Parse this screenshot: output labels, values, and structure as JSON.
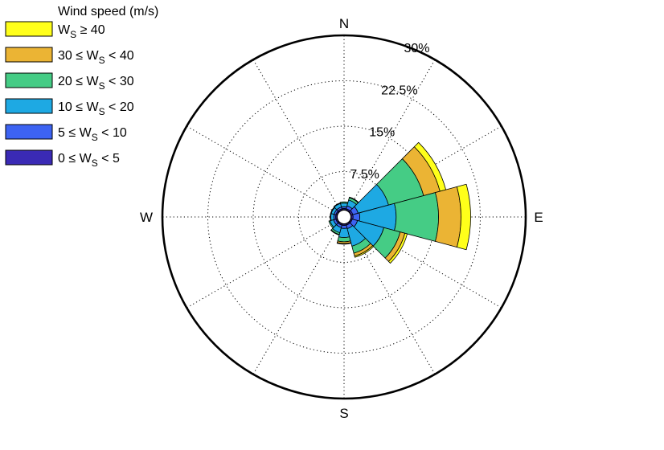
{
  "chart_data": {
    "type": "polar-bar",
    "title": "",
    "legend": {
      "title": "Wind speed (m/s)",
      "placement": "top-left",
      "entries": [
        {
          "key": "ws40",
          "parts": {
            "pre": "",
            "mid": "W",
            "sub": "S",
            "post": " ≥ 40"
          },
          "color": "#ffff1a"
        },
        {
          "key": "ws30",
          "parts": {
            "pre": "30 ≤ ",
            "mid": "W",
            "sub": "S",
            "post": " < 40"
          },
          "color": "#ebb434"
        },
        {
          "key": "ws20",
          "parts": {
            "pre": "20 ≤ ",
            "mid": "W",
            "sub": "S",
            "post": " < 30"
          },
          "color": "#45cc85"
        },
        {
          "key": "ws10",
          "parts": {
            "pre": "10 ≤ ",
            "mid": "W",
            "sub": "S",
            "post": " < 20"
          },
          "color": "#1ea9e3"
        },
        {
          "key": "ws5",
          "parts": {
            "pre": "5 ≤ ",
            "mid": "W",
            "sub": "S",
            "post": " < 10"
          },
          "color": "#3d63f2"
        },
        {
          "key": "ws0",
          "parts": {
            "pre": "0 ≤ ",
            "mid": "W",
            "sub": "S",
            "post": " < 5"
          },
          "color": "#3a2ab5"
        }
      ]
    },
    "directions": {
      "N": "N",
      "E": "E",
      "S": "S",
      "W": "W"
    },
    "radial_ticks": [
      {
        "value": 7.5,
        "label": "7.5%"
      },
      {
        "value": 15,
        "label": "15%"
      },
      {
        "value": 22.5,
        "label": "22.5%"
      },
      {
        "value": 30,
        "label": "30%"
      }
    ],
    "radial_max": 30,
    "center_hole": 1.2,
    "grid": true,
    "sector_width_deg": 30,
    "stack_order_inner_to_outer": [
      "ws0",
      "ws5",
      "ws10",
      "ws20",
      "ws30",
      "ws40"
    ],
    "sectors": [
      {
        "direction_deg": 0,
        "values": [
          0.2,
          0.3,
          0.6,
          0.2,
          0.0,
          0.0
        ]
      },
      {
        "direction_deg": 30,
        "values": [
          0.2,
          0.5,
          1.0,
          0.4,
          0.1,
          0.0
        ]
      },
      {
        "direction_deg": 60,
        "values": [
          0.3,
          0.9,
          5.2,
          6.0,
          2.8,
          1.0
        ]
      },
      {
        "direction_deg": 90,
        "values": [
          0.3,
          1.1,
          6.0,
          7.0,
          3.7,
          1.6
        ]
      },
      {
        "direction_deg": 120,
        "values": [
          0.2,
          0.9,
          4.5,
          2.8,
          0.8,
          0.4
        ]
      },
      {
        "direction_deg": 150,
        "values": [
          0.2,
          0.6,
          3.0,
          1.2,
          0.5,
          0.2
        ]
      },
      {
        "direction_deg": 180,
        "values": [
          0.2,
          0.5,
          1.5,
          0.7,
          0.3,
          0.1
        ]
      },
      {
        "direction_deg": 210,
        "values": [
          0.2,
          0.4,
          0.9,
          0.3,
          0.1,
          0.0
        ]
      },
      {
        "direction_deg": 240,
        "values": [
          0.2,
          0.4,
          0.6,
          0.2,
          0.0,
          0.0
        ]
      },
      {
        "direction_deg": 270,
        "values": [
          0.2,
          0.3,
          0.5,
          0.1,
          0.0,
          0.0
        ]
      },
      {
        "direction_deg": 300,
        "values": [
          0.2,
          0.3,
          0.5,
          0.1,
          0.0,
          0.0
        ]
      },
      {
        "direction_deg": 330,
        "values": [
          0.2,
          0.3,
          0.6,
          0.1,
          0.0,
          0.0
        ]
      }
    ]
  }
}
